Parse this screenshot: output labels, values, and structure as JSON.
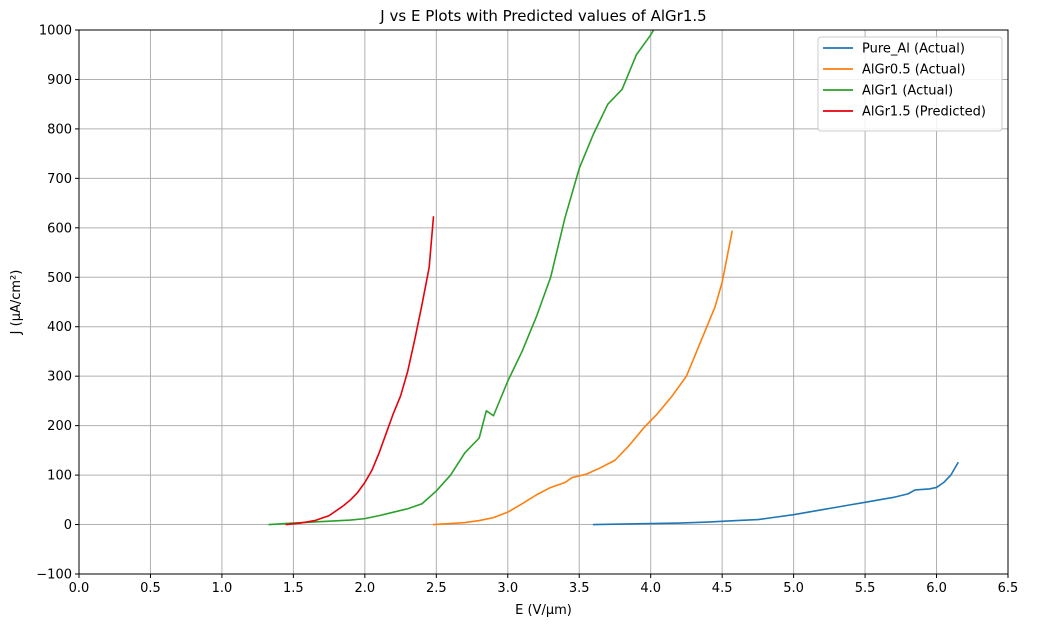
{
  "chart_data": {
    "type": "line",
    "title": "J vs E Plots with Predicted values of AlGr1.5",
    "xlabel": "E (V/µm)",
    "ylabel": "J (µA/cm²)",
    "xlim": [
      0.0,
      6.5
    ],
    "ylim": [
      -100,
      1000
    ],
    "xticks": [
      "0.0",
      "0.5",
      "1.0",
      "1.5",
      "2.0",
      "2.5",
      "3.0",
      "3.5",
      "4.0",
      "4.5",
      "5.0",
      "5.5",
      "6.0",
      "6.5"
    ],
    "yticks": [
      "−100",
      "0",
      "100",
      "200",
      "300",
      "400",
      "500",
      "600",
      "700",
      "800",
      "900",
      "1000"
    ],
    "grid": true,
    "legend_position": "top-right",
    "series": [
      {
        "name": "Pure_Al (Actual)",
        "color": "#1f77b4",
        "x": [
          3.6,
          3.8,
          4.0,
          4.2,
          4.4,
          4.6,
          4.75,
          4.85,
          5.0,
          5.1,
          5.2,
          5.3,
          5.4,
          5.5,
          5.6,
          5.7,
          5.8,
          5.85,
          5.95,
          6.0,
          6.05,
          6.1,
          6.15
        ],
        "y": [
          0,
          1,
          2,
          3,
          5,
          8,
          10,
          14,
          20,
          25,
          30,
          35,
          40,
          45,
          50,
          55,
          62,
          70,
          72,
          75,
          85,
          100,
          125
        ]
      },
      {
        "name": "AlGr0.5 (Actual)",
        "color": "#ff7f0e",
        "x": [
          2.48,
          2.6,
          2.7,
          2.8,
          2.9,
          3.0,
          3.1,
          3.2,
          3.3,
          3.4,
          3.45,
          3.55,
          3.65,
          3.75,
          3.85,
          3.95,
          4.05,
          4.15,
          4.25,
          4.35,
          4.45,
          4.5,
          4.57
        ],
        "y": [
          0,
          2,
          4,
          8,
          14,
          25,
          42,
          60,
          75,
          85,
          95,
          102,
          115,
          130,
          160,
          195,
          225,
          260,
          300,
          370,
          440,
          490,
          593
        ]
      },
      {
        "name": "AlGr1 (Actual)",
        "color": "#2ca02c",
        "x": [
          1.33,
          1.5,
          1.7,
          1.9,
          2.0,
          2.1,
          2.2,
          2.3,
          2.4,
          2.45,
          2.5,
          2.6,
          2.7,
          2.8,
          2.85,
          2.9,
          3.0,
          3.1,
          3.2,
          3.3,
          3.4,
          3.5,
          3.6,
          3.7,
          3.8,
          3.9,
          4.0,
          4.02
        ],
        "y": [
          0,
          3,
          6,
          9,
          12,
          18,
          25,
          32,
          42,
          55,
          68,
          100,
          145,
          175,
          230,
          220,
          290,
          350,
          420,
          500,
          620,
          720,
          790,
          850,
          880,
          950,
          990,
          1000
        ]
      },
      {
        "name": "AlGr1.5 (Predicted)",
        "color": "#e8000b",
        "x": [
          1.45,
          1.55,
          1.65,
          1.75,
          1.85,
          1.9,
          1.95,
          2.0,
          2.05,
          2.1,
          2.15,
          2.2,
          2.25,
          2.3,
          2.35,
          2.4,
          2.45,
          2.48
        ],
        "y": [
          0,
          3,
          8,
          18,
          38,
          50,
          65,
          85,
          110,
          145,
          185,
          225,
          260,
          310,
          375,
          445,
          520,
          622
        ]
      }
    ]
  }
}
